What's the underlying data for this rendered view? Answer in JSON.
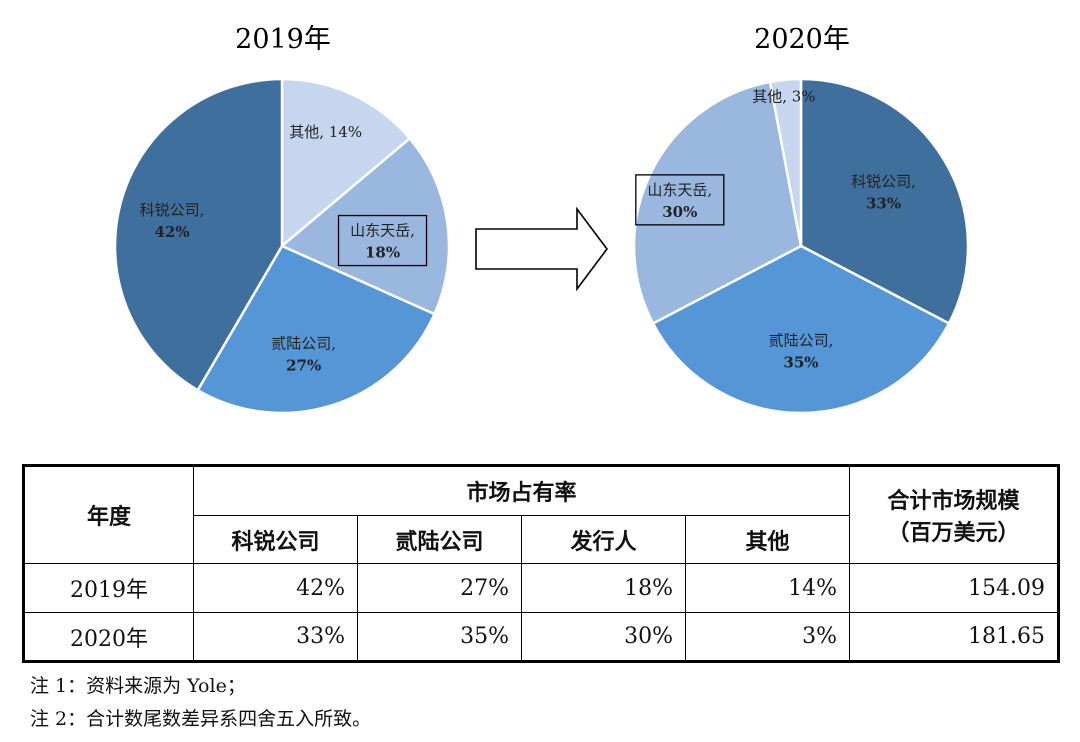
{
  "chart_data": [
    {
      "type": "pie",
      "title": "2019年",
      "slices": [
        {
          "label": "其他",
          "value": 14,
          "display": "14%",
          "color": "#c5d6ee"
        },
        {
          "label": "山东天岳",
          "value": 18,
          "display": "18%",
          "color": "#9ab7df",
          "boxed": true
        },
        {
          "label": "贰陆公司",
          "value": 27,
          "display": "27%",
          "color": "#5597d6"
        },
        {
          "label": "科锐公司",
          "value": 42,
          "display": "42%",
          "color": "#3f6f9c"
        }
      ]
    },
    {
      "type": "pie",
      "title": "2020年",
      "slices": [
        {
          "label": "科锐公司",
          "value": 33,
          "display": "33%",
          "color": "#3f6f9c"
        },
        {
          "label": "贰陆公司",
          "value": 35,
          "display": "35%",
          "color": "#5597d6"
        },
        {
          "label": "山东天岳",
          "value": 30,
          "display": "30%",
          "color": "#9ab7df",
          "boxed": true
        },
        {
          "label": "其他",
          "value": 3,
          "display": "3%",
          "color": "#c5d6ee"
        }
      ]
    }
  ],
  "table": {
    "year_header": "年度",
    "share_header": "市场占有率",
    "total_header_line1": "合计市场规模",
    "total_header_line2": "（百万美元）",
    "columns": [
      "科锐公司",
      "贰陆公司",
      "发行人",
      "其他"
    ],
    "rows": [
      {
        "year": "2019年",
        "values": [
          "42%",
          "27%",
          "18%",
          "14%"
        ],
        "total": "154.09"
      },
      {
        "year": "2020年",
        "values": [
          "33%",
          "35%",
          "30%",
          "3%"
        ],
        "total": "181.65"
      }
    ]
  },
  "notes": [
    "注 1：资料来源为 Yole；",
    "注 2：合计数尾数差异系四舍五入所致。"
  ]
}
